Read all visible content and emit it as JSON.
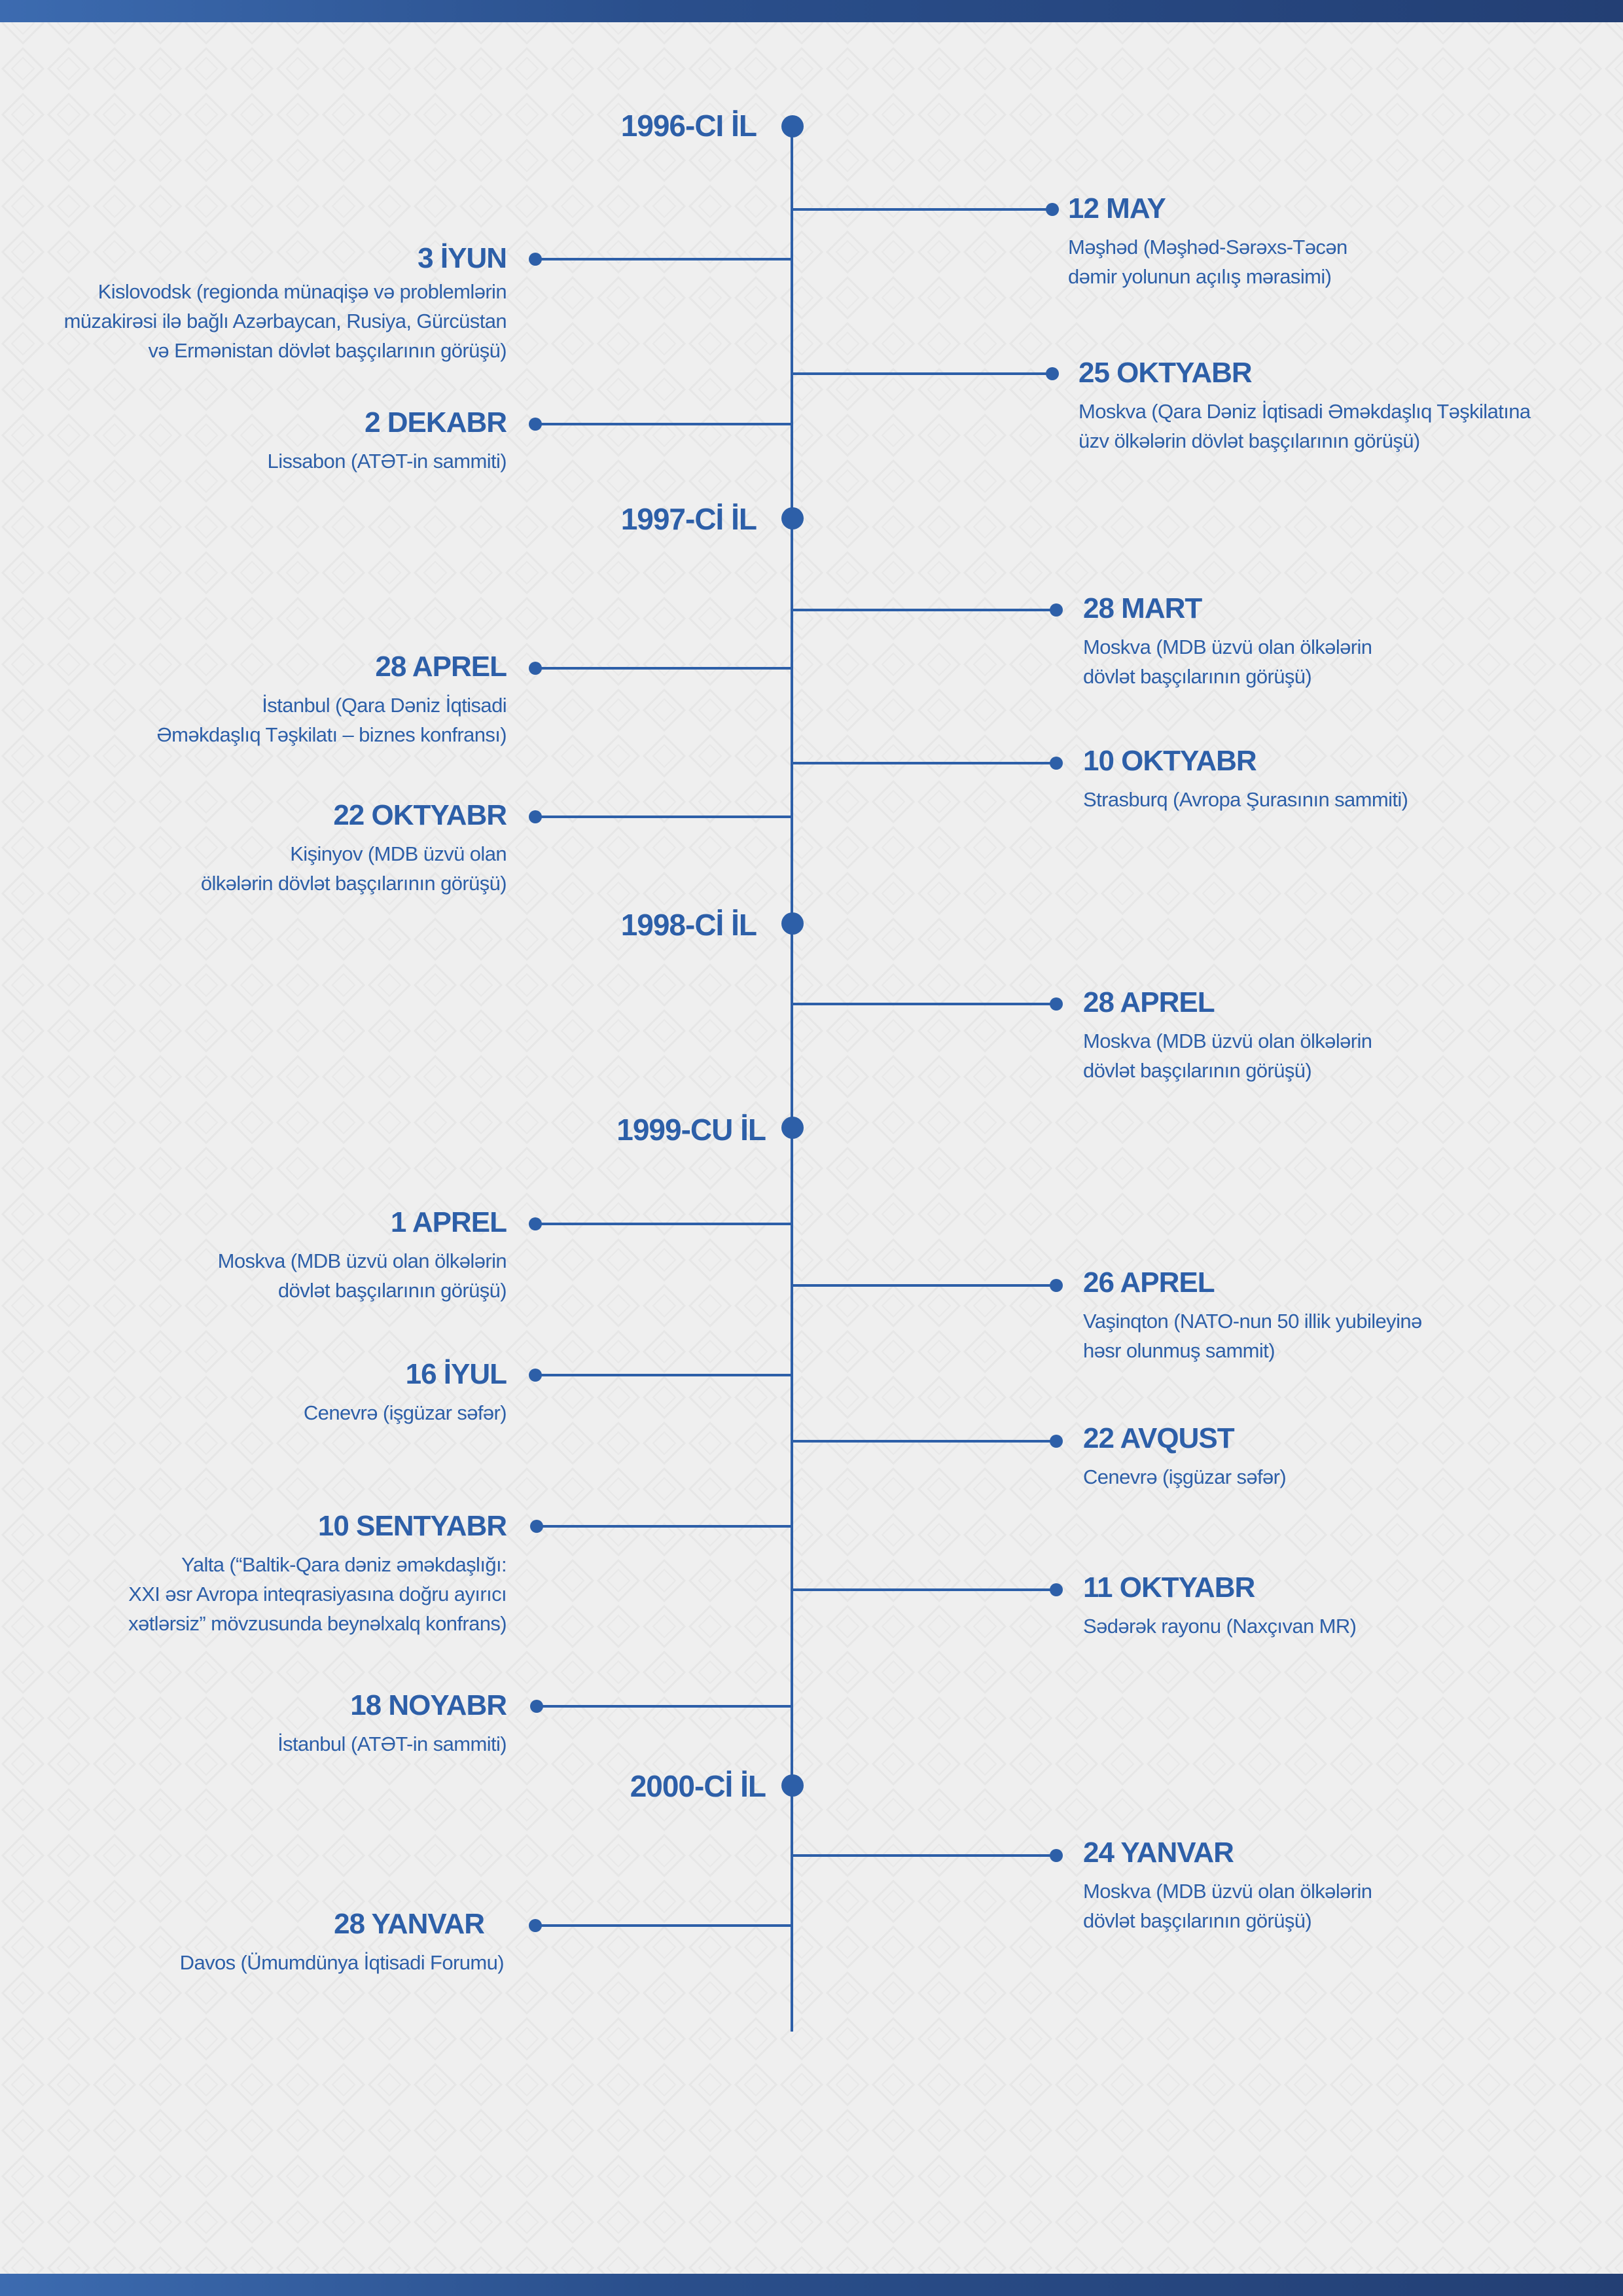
{
  "years": [
    {
      "label": "1996-CI İL"
    },
    {
      "label": "1997-Cİ İL"
    },
    {
      "label": "1998-Cİ İL"
    },
    {
      "label": "1999-CU İL"
    },
    {
      "label": "2000-Cİ İL"
    }
  ],
  "events": [
    {
      "date": "12 MAY",
      "desc": "Məşhəd (Məşhəd-Sərəxs-Təcən\ndəmir yolunun açılış mərasimi)"
    },
    {
      "date": "3 İYUN",
      "desc": "Kislovodsk (regionda münaqişə və problemlərin\nmüzakirəsi ilə bağlı Azərbaycan, Rusiya, Gürcüstan\nvə Ermənistan dövlət başçılarının görüşü)"
    },
    {
      "date": "25 OKTYABR",
      "desc": "Moskva (Qara Dəniz İqtisadi Əməkdaşlıq Təşkilatına\nüzv ölkələrin dövlət başçılarının görüşü)"
    },
    {
      "date": "2 DEKABR",
      "desc": "Lissabon (ATƏT-in sammiti)"
    },
    {
      "date": "28 MART",
      "desc": "Moskva (MDB üzvü olan ölkələrin\ndövlət başçılarının görüşü)"
    },
    {
      "date": "28 APREL",
      "desc": "İstanbul (Qara Dəniz İqtisadi\nƏməkdaşlıq Təşkilatı – biznes konfransı)"
    },
    {
      "date": "10 OKTYABR",
      "desc": "Strasburq (Avropa Şurasının sammiti)"
    },
    {
      "date": "22 OKTYABR",
      "desc": "Kişinyov (MDB üzvü olan\nölkələrin dövlət başçılarının görüşü)"
    },
    {
      "date": "28 APREL",
      "desc": "Moskva (MDB üzvü olan ölkələrin\ndövlət başçılarının görüşü)"
    },
    {
      "date": "1 APREL",
      "desc": "Moskva (MDB üzvü olan ölkələrin\ndövlət başçılarının görüşü)"
    },
    {
      "date": "26 APREL",
      "desc": "Vaşinqton (NATO-nun 50 illik yubileyinə\nhəsr olunmuş sammit)"
    },
    {
      "date": "16 İYUL",
      "desc": "Cenevrə (işgüzar səfər)"
    },
    {
      "date": "22 AVQUST",
      "desc": "Cenevrə (işgüzar səfər)"
    },
    {
      "date": "10 SENTYABR",
      "desc": "Yalta (“Baltik-Qara dəniz əməkdaşlığı:\nXXI əsr Avropa inteqrasiyasına doğru ayırıcı\nxətlərsiz” mövzusunda beynəlxalq konfrans)"
    },
    {
      "date": "11 OKTYABR",
      "desc": "Sədərək rayonu (Naxçıvan MR)"
    },
    {
      "date": "18 NOYABR",
      "desc": "İstanbul (ATƏT-in sammiti)"
    },
    {
      "date": "24 YANVAR",
      "desc": "Moskva (MDB üzvü olan ölkələrin\ndövlət başçılarının görüşü)"
    },
    {
      "date": "28 YANVAR",
      "desc": "Davos (Ümumdünya İqtisadi Forumu)"
    }
  ],
  "colors": {
    "accent": "#2d5fa8",
    "background": "#efefef",
    "band": "#2a4f8c"
  }
}
